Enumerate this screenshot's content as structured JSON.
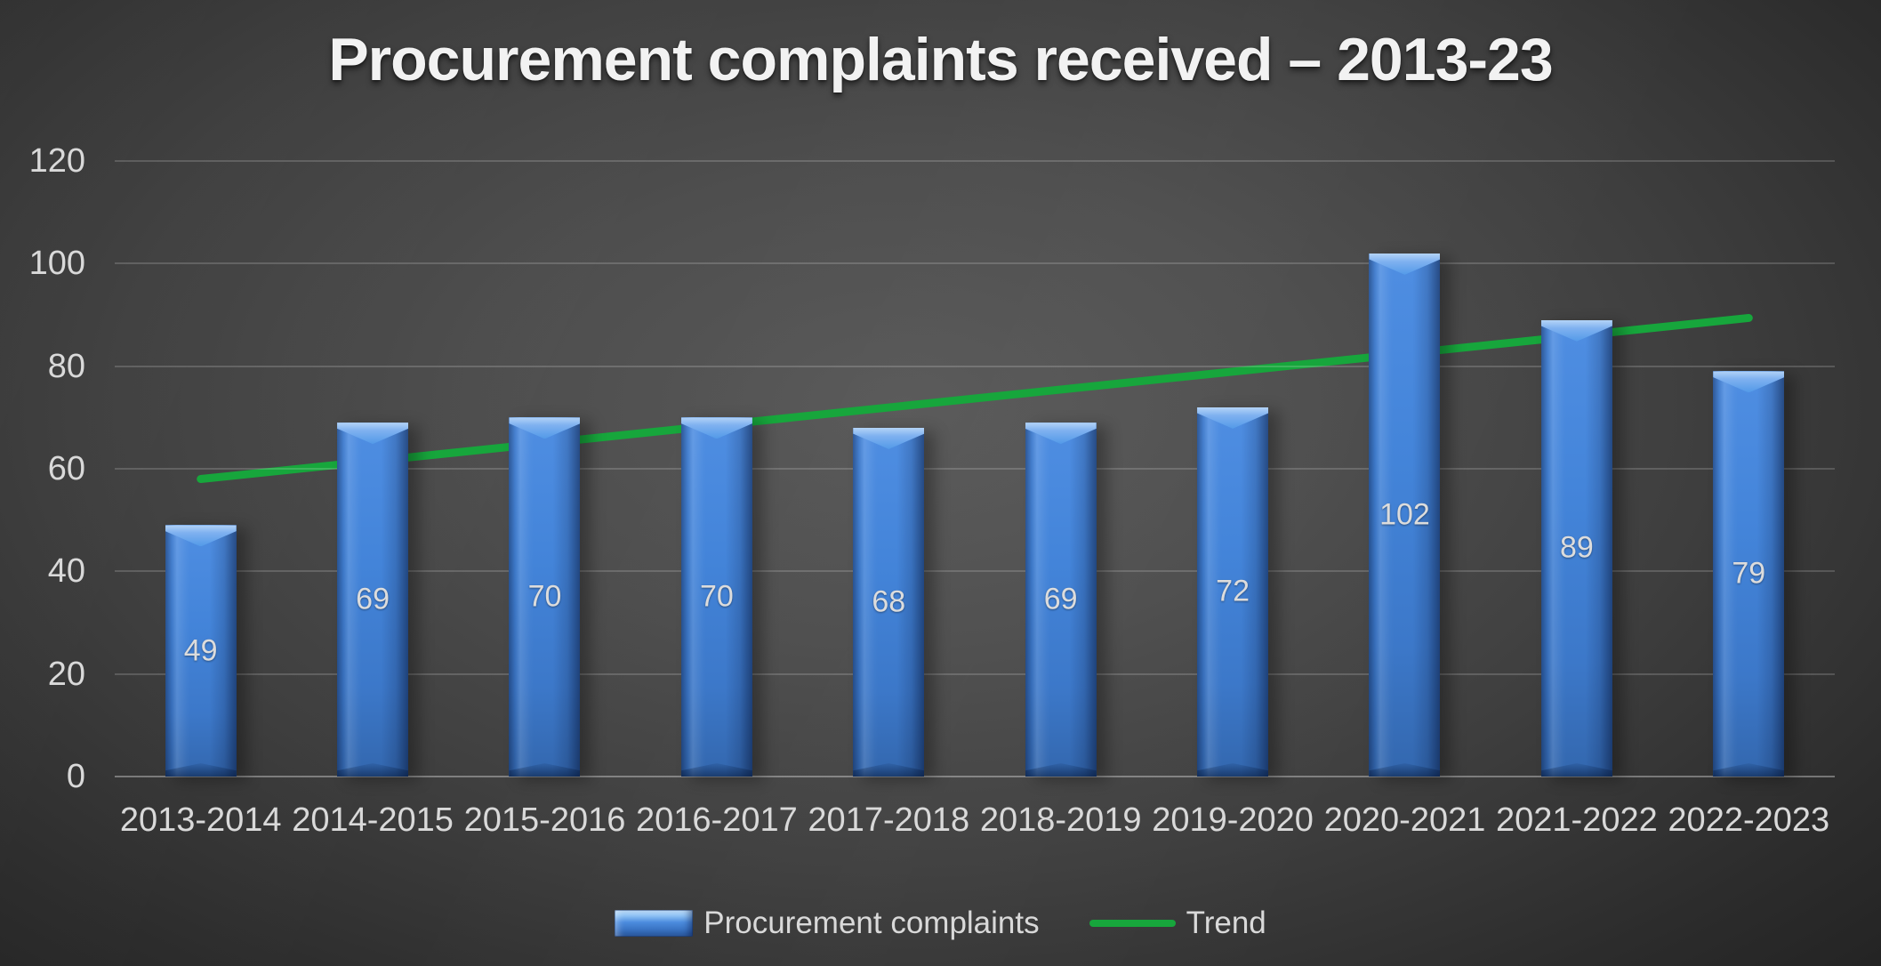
{
  "title": "Procurement complaints received – 2013-23",
  "chart_data": {
    "type": "bar",
    "title": "Procurement complaints received – 2013-23",
    "categories": [
      "2013-2014",
      "2014-2015",
      "2015-2016",
      "2016-2017",
      "2017-2018",
      "2018-2019",
      "2019-2020",
      "2020-2021",
      "2021-2022",
      "2022-2023"
    ],
    "series": [
      {
        "name": "Procurement complaints",
        "type": "bar",
        "values": [
          49,
          69,
          70,
          70,
          68,
          69,
          72,
          102,
          89,
          79
        ],
        "color": "#4284d8",
        "data_labels": true,
        "data_label_position": "inside-center"
      },
      {
        "name": "Trend",
        "type": "line",
        "trendline": {
          "start_value": 58,
          "end_value": 89.4
        },
        "color": "#17a63c",
        "stroke_width": 9
      }
    ],
    "xlabel": "",
    "ylabel": "",
    "ylim": [
      0,
      120
    ],
    "yticks": [
      0,
      20,
      40,
      60,
      80,
      100,
      120
    ],
    "grid": true,
    "legend_position": "bottom",
    "theme": "dark"
  },
  "legend": {
    "items": [
      {
        "label": "Procurement complaints",
        "marker": "beveled-bar-swatch"
      },
      {
        "label": "Trend",
        "marker": "green-line-swatch"
      }
    ]
  },
  "colors": {
    "bar": "#4284d8",
    "bar_highlight": "#a9cef6",
    "trend": "#17a63c",
    "axis_text": "#d9d9d9",
    "data_label_text": "#dcdcdc",
    "title_text": "#f2f2f2",
    "gridline": "rgba(255,255,255,0.17)",
    "background_center": "#595959",
    "background_edge": "#202020"
  }
}
